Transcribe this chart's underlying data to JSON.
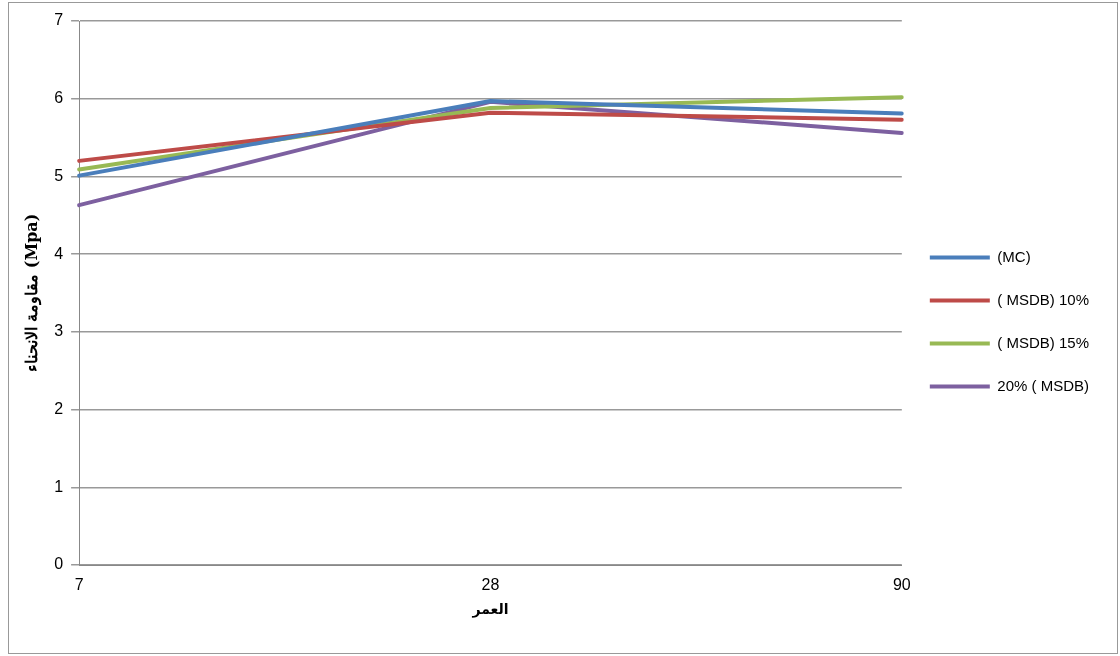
{
  "chart_data": {
    "type": "line",
    "xlabel": "العمر",
    "ylabel": "مقاومة الانحناء (Mpa)",
    "categories": [
      "7",
      "28",
      "90"
    ],
    "series": [
      {
        "name": "(MC)",
        "color": "#4a7ebb",
        "values": [
          5.01,
          5.97,
          5.81
        ]
      },
      {
        "name": "( MSDB) 10%",
        "color": "#be4b48",
        "values": [
          5.2,
          5.82,
          5.73
        ]
      },
      {
        "name": "( MSDB) 15%",
        "color": "#98b954",
        "values": [
          5.09,
          5.88,
          6.02
        ]
      },
      {
        "name": "20% ( MSDB)",
        "color": "#7d60a0",
        "values": [
          4.63,
          5.96,
          5.56
        ]
      }
    ],
    "ylim": [
      0,
      7
    ],
    "yticks": [
      0,
      1,
      2,
      3,
      4,
      5,
      6,
      7
    ],
    "grid": "y",
    "legend": "right",
    "marker": "none",
    "line_style": "solid"
  }
}
